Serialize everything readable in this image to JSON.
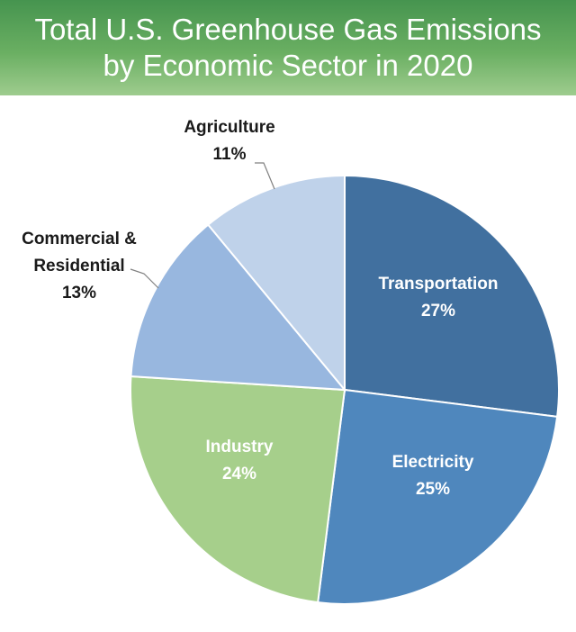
{
  "header": {
    "title_line1": "Total U.S. Greenhouse Gas Emissions",
    "title_line2": "by Economic Sector in 2020"
  },
  "chart_data": {
    "type": "pie",
    "title": "Total U.S. Greenhouse Gas Emissions by Economic Sector in 2020",
    "start": "12 o'clock",
    "direction": "clockwise",
    "slices": [
      {
        "label": "Transportation",
        "value": 27,
        "display": "27%",
        "color": "#41709f"
      },
      {
        "label": "Electricity",
        "value": 25,
        "display": "25%",
        "color": "#4f87bd"
      },
      {
        "label": "Industry",
        "value": 24,
        "display": "24%",
        "color": "#a6cf8b"
      },
      {
        "label": "Commercial & Residential",
        "label_lines": [
          "Commercial &",
          "Residential"
        ],
        "value": 13,
        "display": "13%",
        "color": "#98b7df"
      },
      {
        "label": "Agriculture",
        "value": 11,
        "display": "11%",
        "color": "#bfd2ea"
      }
    ]
  }
}
